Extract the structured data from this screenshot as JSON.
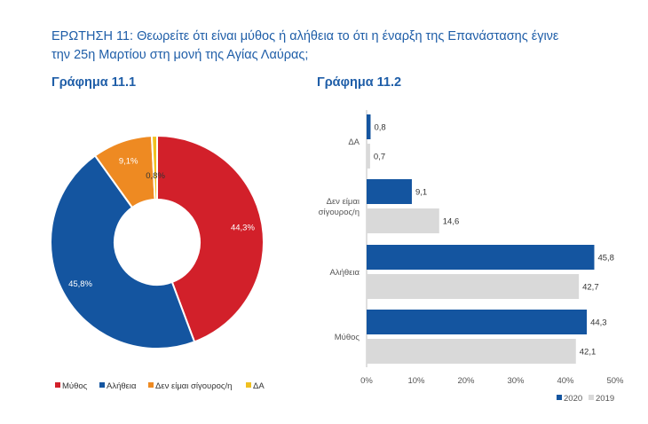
{
  "question": {
    "line1": "ΕΡΩΤΗΣΗ 11: Θεωρείτε ότι είναι μύθος ή αλήθεια το ότι η έναρξη της Επανάστασης έγινε",
    "line2": "την 25η Μαρτίου στη μονή της Αγίας Λαύρας;"
  },
  "colors": {
    "mythos": "#d2202a",
    "aletheia": "#1455a0",
    "den_eimai": "#ee8a22",
    "da": "#f0c020",
    "y2020": "#1455a0",
    "y2019": "#d9d9d9",
    "title": "#1f5ea8"
  },
  "chart_data": [
    {
      "type": "pie",
      "title": "Γράφημα 11.1",
      "labels": [
        "Μύθος",
        "Αλήθεια",
        "Δεν είμαι σίγουρος/η",
        "ΔΑ"
      ],
      "values": [
        44.3,
        45.8,
        9.1,
        0.8
      ],
      "value_labels": [
        "44,3%",
        "45,8%",
        "9,1%",
        "0,8%"
      ],
      "legend_position": "bottom"
    },
    {
      "type": "bar",
      "orientation": "horizontal",
      "title": "Γράφημα 11.2",
      "categories": [
        "ΔΑ",
        "Δεν είμαι σίγουρος/η",
        "Αλήθεια",
        "Μύθος"
      ],
      "category_lines": [
        [
          "ΔΑ"
        ],
        [
          "Δεν είμαι",
          "σίγουρος/η"
        ],
        [
          "Αλήθεια"
        ],
        [
          "Μύθος"
        ]
      ],
      "series": [
        {
          "name": "2020",
          "values": [
            0.8,
            9.1,
            45.8,
            44.3
          ],
          "labels": [
            "0,8",
            "9,1",
            "45,8",
            "44,3"
          ]
        },
        {
          "name": "2019",
          "values": [
            0.7,
            14.6,
            42.7,
            42.1
          ],
          "labels": [
            "0,7",
            "14,6",
            "42,7",
            "42,1"
          ]
        }
      ],
      "xlim": [
        0,
        50
      ],
      "xticks": [
        0,
        10,
        20,
        30,
        40,
        50
      ],
      "xtick_labels": [
        "0%",
        "10%",
        "20%",
        "30%",
        "40%",
        "50%"
      ],
      "legend_position": "bottom-right",
      "grid": false
    }
  ]
}
